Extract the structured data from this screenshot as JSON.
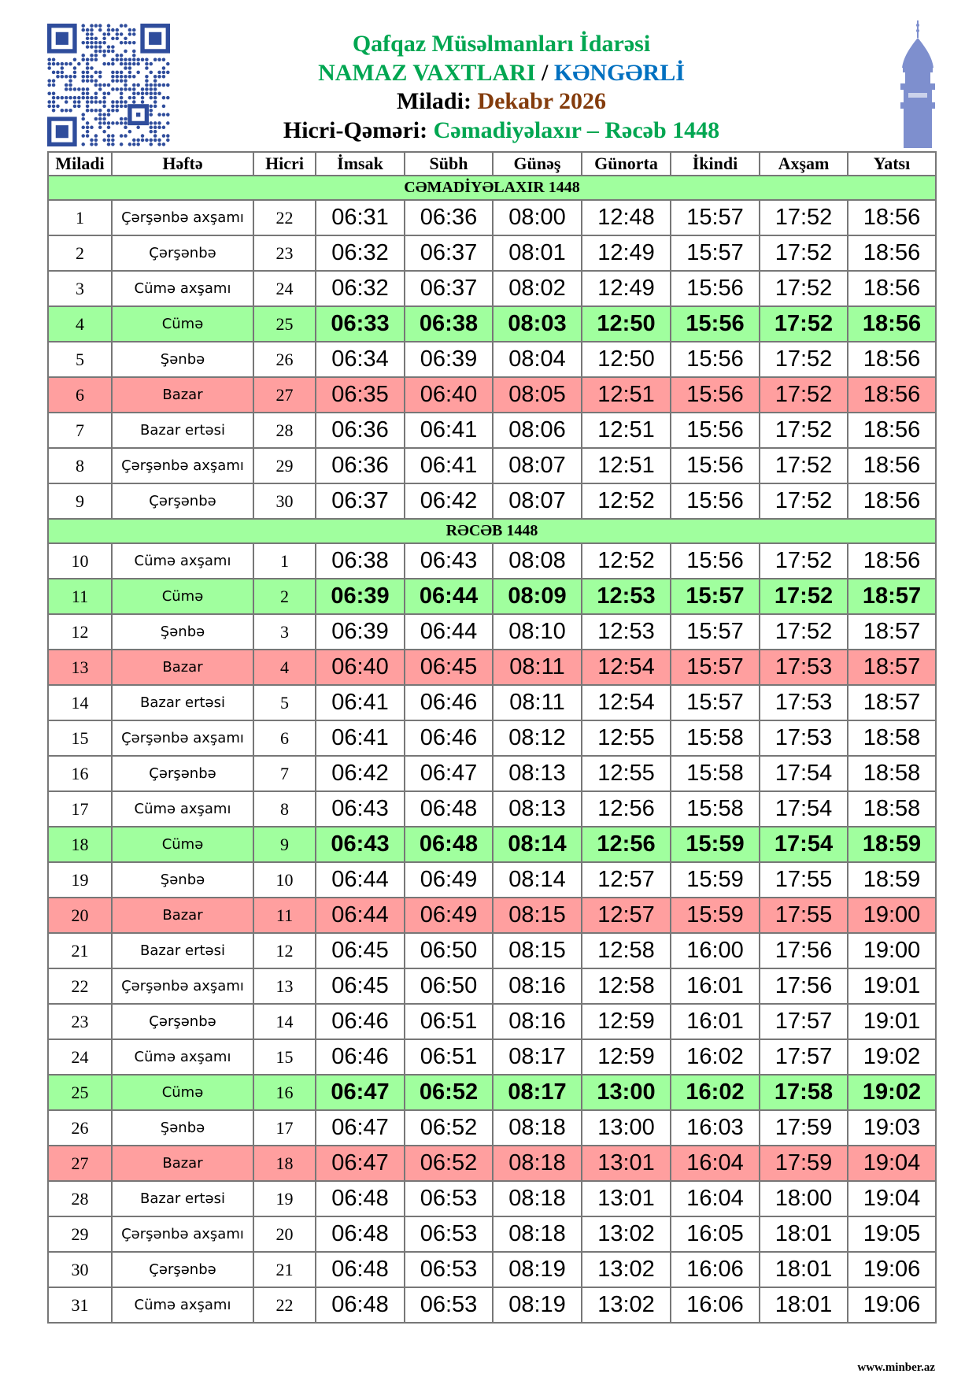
{
  "header": {
    "line1": "Qafqaz Müsəlmanları İdarəsi",
    "line2_left": "NAMAZ VAXTLARI",
    "line2_sep": " / ",
    "line2_city": "KƏNGƏRLİ",
    "line3_label": "Miladi:",
    "line3_value": "Dekabr 2026",
    "line4_label": "Hicri-Qəməri:",
    "line4_value": "Cəmadiyəlaxır – Rəcəb 1448",
    "qr_icon": "qr-code",
    "logo_icon": "minaret"
  },
  "colors": {
    "title_green": "#00a651",
    "city_blue": "#0070c0",
    "month_brown": "#843c0c",
    "friday_row": "#a0ff9e",
    "sunday_row": "#ff9f9f",
    "banner": "#a0ff9e"
  },
  "table": {
    "columns": [
      "Miladi",
      "Həftə",
      "Hicri",
      "İmsak",
      "Sübh",
      "Günəş",
      "Günorta",
      "İkindi",
      "Axşam",
      "Yatsı"
    ],
    "sections": [
      {
        "banner": "CƏMADİYƏLAXIR 1448",
        "rows": [
          {
            "miladi": "1",
            "hefte": "Çərşənbə axşamı",
            "hicri": "22",
            "type": "normal",
            "times": [
              "06:31",
              "06:36",
              "08:00",
              "12:48",
              "15:57",
              "17:52",
              "18:56"
            ]
          },
          {
            "miladi": "2",
            "hefte": "Çərşənbə",
            "hicri": "23",
            "type": "normal",
            "times": [
              "06:32",
              "06:37",
              "08:01",
              "12:49",
              "15:57",
              "17:52",
              "18:56"
            ]
          },
          {
            "miladi": "3",
            "hefte": "Cümə axşamı",
            "hicri": "24",
            "type": "normal",
            "times": [
              "06:32",
              "06:37",
              "08:02",
              "12:49",
              "15:56",
              "17:52",
              "18:56"
            ]
          },
          {
            "miladi": "4",
            "hefte": "Cümə",
            "hicri": "25",
            "type": "friday",
            "times": [
              "06:33",
              "06:38",
              "08:03",
              "12:50",
              "15:56",
              "17:52",
              "18:56"
            ]
          },
          {
            "miladi": "5",
            "hefte": "Şənbə",
            "hicri": "26",
            "type": "normal",
            "times": [
              "06:34",
              "06:39",
              "08:04",
              "12:50",
              "15:56",
              "17:52",
              "18:56"
            ]
          },
          {
            "miladi": "6",
            "hefte": "Bazar",
            "hicri": "27",
            "type": "sunday",
            "times": [
              "06:35",
              "06:40",
              "08:05",
              "12:51",
              "15:56",
              "17:52",
              "18:56"
            ]
          },
          {
            "miladi": "7",
            "hefte": "Bazar ertəsi",
            "hicri": "28",
            "type": "normal",
            "times": [
              "06:36",
              "06:41",
              "08:06",
              "12:51",
              "15:56",
              "17:52",
              "18:56"
            ]
          },
          {
            "miladi": "8",
            "hefte": "Çərşənbə axşamı",
            "hicri": "29",
            "type": "normal",
            "times": [
              "06:36",
              "06:41",
              "08:07",
              "12:51",
              "15:56",
              "17:52",
              "18:56"
            ]
          },
          {
            "miladi": "9",
            "hefte": "Çərşənbə",
            "hicri": "30",
            "type": "normal",
            "times": [
              "06:37",
              "06:42",
              "08:07",
              "12:52",
              "15:56",
              "17:52",
              "18:56"
            ]
          }
        ]
      },
      {
        "banner": "RƏCƏB 1448",
        "rows": [
          {
            "miladi": "10",
            "hefte": "Cümə axşamı",
            "hicri": "1",
            "type": "normal",
            "times": [
              "06:38",
              "06:43",
              "08:08",
              "12:52",
              "15:56",
              "17:52",
              "18:56"
            ]
          },
          {
            "miladi": "11",
            "hefte": "Cümə",
            "hicri": "2",
            "type": "friday",
            "times": [
              "06:39",
              "06:44",
              "08:09",
              "12:53",
              "15:57",
              "17:52",
              "18:57"
            ]
          },
          {
            "miladi": "12",
            "hefte": "Şənbə",
            "hicri": "3",
            "type": "normal",
            "times": [
              "06:39",
              "06:44",
              "08:10",
              "12:53",
              "15:57",
              "17:52",
              "18:57"
            ]
          },
          {
            "miladi": "13",
            "hefte": "Bazar",
            "hicri": "4",
            "type": "sunday",
            "times": [
              "06:40",
              "06:45",
              "08:11",
              "12:54",
              "15:57",
              "17:53",
              "18:57"
            ]
          },
          {
            "miladi": "14",
            "hefte": "Bazar ertəsi",
            "hicri": "5",
            "type": "normal",
            "times": [
              "06:41",
              "06:46",
              "08:11",
              "12:54",
              "15:57",
              "17:53",
              "18:57"
            ]
          },
          {
            "miladi": "15",
            "hefte": "Çərşənbə axşamı",
            "hicri": "6",
            "type": "normal",
            "times": [
              "06:41",
              "06:46",
              "08:12",
              "12:55",
              "15:58",
              "17:53",
              "18:58"
            ]
          },
          {
            "miladi": "16",
            "hefte": "Çərşənbə",
            "hicri": "7",
            "type": "normal",
            "times": [
              "06:42",
              "06:47",
              "08:13",
              "12:55",
              "15:58",
              "17:54",
              "18:58"
            ]
          },
          {
            "miladi": "17",
            "hefte": "Cümə axşamı",
            "hicri": "8",
            "type": "normal",
            "times": [
              "06:43",
              "06:48",
              "08:13",
              "12:56",
              "15:58",
              "17:54",
              "18:58"
            ]
          },
          {
            "miladi": "18",
            "hefte": "Cümə",
            "hicri": "9",
            "type": "friday",
            "times": [
              "06:43",
              "06:48",
              "08:14",
              "12:56",
              "15:59",
              "17:54",
              "18:59"
            ]
          },
          {
            "miladi": "19",
            "hefte": "Şənbə",
            "hicri": "10",
            "type": "normal",
            "times": [
              "06:44",
              "06:49",
              "08:14",
              "12:57",
              "15:59",
              "17:55",
              "18:59"
            ]
          },
          {
            "miladi": "20",
            "hefte": "Bazar",
            "hicri": "11",
            "type": "sunday",
            "times": [
              "06:44",
              "06:49",
              "08:15",
              "12:57",
              "15:59",
              "17:55",
              "19:00"
            ]
          },
          {
            "miladi": "21",
            "hefte": "Bazar ertəsi",
            "hicri": "12",
            "type": "normal",
            "times": [
              "06:45",
              "06:50",
              "08:15",
              "12:58",
              "16:00",
              "17:56",
              "19:00"
            ]
          },
          {
            "miladi": "22",
            "hefte": "Çərşənbə axşamı",
            "hicri": "13",
            "type": "normal",
            "times": [
              "06:45",
              "06:50",
              "08:16",
              "12:58",
              "16:01",
              "17:56",
              "19:01"
            ]
          },
          {
            "miladi": "23",
            "hefte": "Çərşənbə",
            "hicri": "14",
            "type": "normal",
            "times": [
              "06:46",
              "06:51",
              "08:16",
              "12:59",
              "16:01",
              "17:57",
              "19:01"
            ]
          },
          {
            "miladi": "24",
            "hefte": "Cümə axşamı",
            "hicri": "15",
            "type": "normal",
            "times": [
              "06:46",
              "06:51",
              "08:17",
              "12:59",
              "16:02",
              "17:57",
              "19:02"
            ]
          },
          {
            "miladi": "25",
            "hefte": "Cümə",
            "hicri": "16",
            "type": "friday",
            "times": [
              "06:47",
              "06:52",
              "08:17",
              "13:00",
              "16:02",
              "17:58",
              "19:02"
            ]
          },
          {
            "miladi": "26",
            "hefte": "Şənbə",
            "hicri": "17",
            "type": "normal",
            "times": [
              "06:47",
              "06:52",
              "08:18",
              "13:00",
              "16:03",
              "17:59",
              "19:03"
            ]
          },
          {
            "miladi": "27",
            "hefte": "Bazar",
            "hicri": "18",
            "type": "sunday",
            "times": [
              "06:47",
              "06:52",
              "08:18",
              "13:01",
              "16:04",
              "17:59",
              "19:04"
            ]
          },
          {
            "miladi": "28",
            "hefte": "Bazar ertəsi",
            "hicri": "19",
            "type": "normal",
            "times": [
              "06:48",
              "06:53",
              "08:18",
              "13:01",
              "16:04",
              "18:00",
              "19:04"
            ]
          },
          {
            "miladi": "29",
            "hefte": "Çərşənbə axşamı",
            "hicri": "20",
            "type": "normal",
            "times": [
              "06:48",
              "06:53",
              "08:18",
              "13:02",
              "16:05",
              "18:01",
              "19:05"
            ]
          },
          {
            "miladi": "30",
            "hefte": "Çərşənbə",
            "hicri": "21",
            "type": "normal",
            "times": [
              "06:48",
              "06:53",
              "08:19",
              "13:02",
              "16:06",
              "18:01",
              "19:06"
            ]
          },
          {
            "miladi": "31",
            "hefte": "Cümə axşamı",
            "hicri": "22",
            "type": "normal",
            "times": [
              "06:48",
              "06:53",
              "08:19",
              "13:02",
              "16:06",
              "18:01",
              "19:06"
            ]
          }
        ]
      }
    ]
  },
  "footer": {
    "website": "www.minber.az"
  }
}
